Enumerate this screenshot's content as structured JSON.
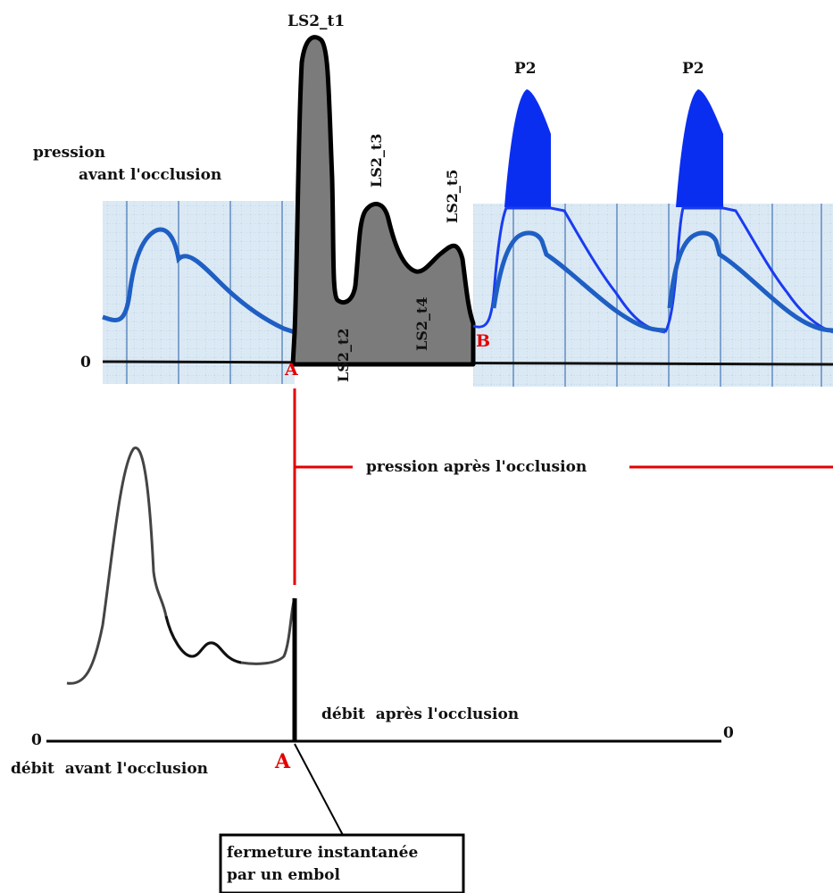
{
  "upper": {
    "pressure_before_label_line1": "pression",
    "pressure_before_label_line2": "avant l'occlusion",
    "zero_label": "0",
    "peak_labels": [
      "LS2_t1",
      "LS2_t2",
      "LS2_t3",
      "LS2_t4",
      "LS2_t5"
    ],
    "point_a": "A",
    "point_b": "B",
    "pulse_labels": [
      "P2",
      "P2"
    ],
    "pressure_after_label": "pression après l'occlusion"
  },
  "lower": {
    "zero_left": "0",
    "zero_right": "0",
    "flow_before_label": "débit  avant l'occlusion",
    "flow_after_label": "débit  après l'occlusion",
    "point_a": "A",
    "box_line1": "fermeture instantanée",
    "box_line2": "par un embol"
  },
  "colors": {
    "red": "#e30000",
    "blue_trace": "#1f5fc4",
    "pulse_fill": "#0a2ef0",
    "occlusion_fill": "#7b7b7b",
    "grid_bg": "#dbe9f4",
    "grid_line": "#7fa3cf"
  }
}
